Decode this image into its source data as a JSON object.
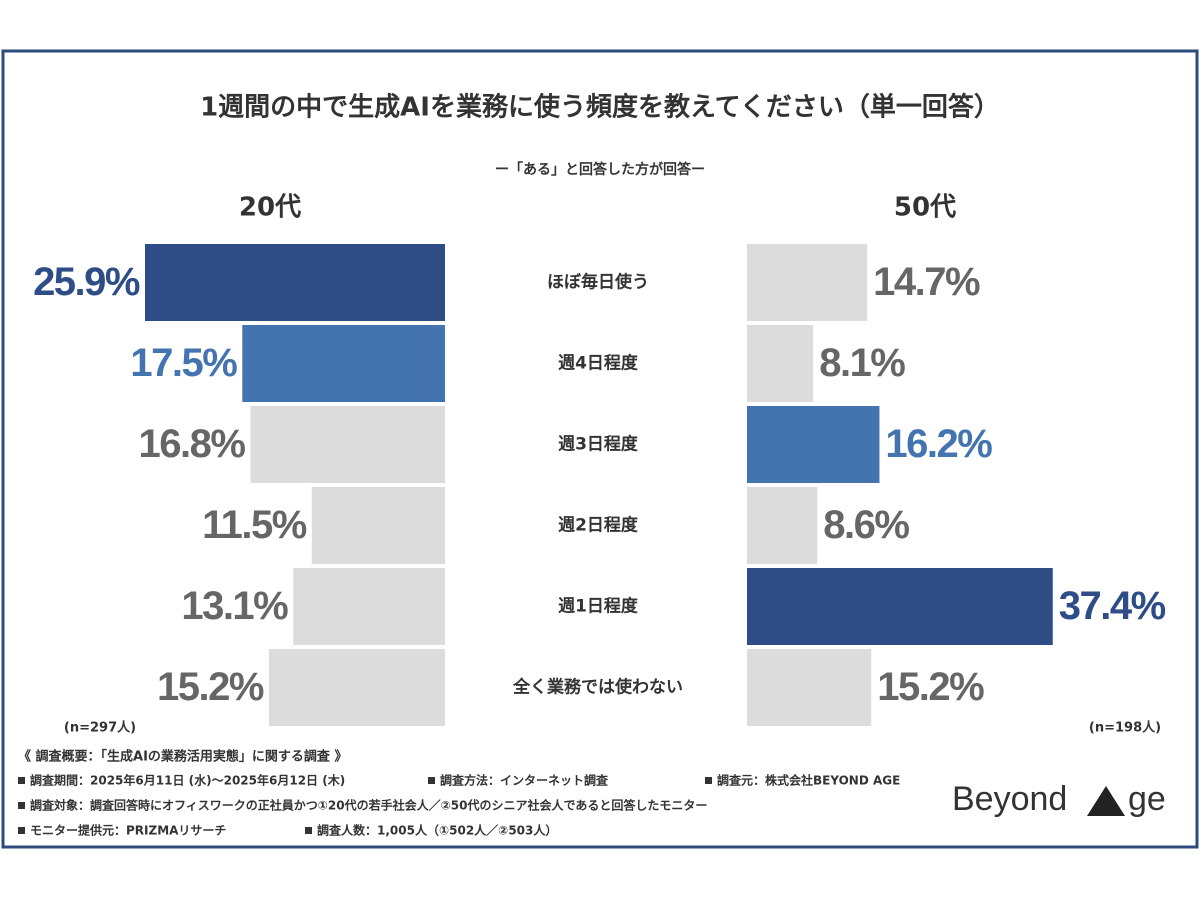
{
  "header": {
    "title": "1週間の中で生成AIを業務に使う頻度を教えてください（単一回答）",
    "subtitle": "ー「ある」と回答した方が回答ー"
  },
  "chart_data": {
    "type": "butterfly-bar",
    "categories": [
      "ほぼ毎日使う",
      "週4日程度",
      "週3日程度",
      "週2日程度",
      "週1日程度",
      "全く業務では使わない"
    ],
    "series": [
      {
        "name": "20代",
        "note": "(n=297人)",
        "xlim": [
          0,
          30
        ],
        "values": [
          25.9,
          17.5,
          16.8,
          11.5,
          13.1,
          15.2
        ],
        "value_labels": [
          "25.9%",
          "17.5%",
          "16.8%",
          "11.5%",
          "13.1%",
          "15.2%"
        ],
        "colors": [
          "#2e4d87",
          "#4474b0",
          "#dcdcdc",
          "#dcdcdc",
          "#dcdcdc",
          "#dcdcdc"
        ],
        "label_colors": [
          "#2e4d87",
          "#4474b0",
          "#666666",
          "#666666",
          "#666666",
          "#666666"
        ]
      },
      {
        "name": "50代",
        "note": "(n=198人)",
        "xlim": [
          0,
          40
        ],
        "values": [
          14.7,
          8.1,
          16.2,
          8.6,
          37.4,
          15.2
        ],
        "value_labels": [
          "14.7%",
          "8.1%",
          "16.2%",
          "8.6%",
          "37.4%",
          "15.2%"
        ],
        "colors": [
          "#dcdcdc",
          "#dcdcdc",
          "#4474b0",
          "#dcdcdc",
          "#2e4d87",
          "#dcdcdc"
        ],
        "label_colors": [
          "#666666",
          "#666666",
          "#4474b0",
          "#666666",
          "#2e4d87",
          "#666666"
        ]
      }
    ]
  },
  "footer": {
    "heading": "《 調査概要：「生成AIの業務活用実態」に関する調査 》",
    "rows": [
      [
        "調査期間：2025年6月11日 (水)～2025年6月12日 (木)",
        "調査方法：インターネット調査",
        "調査元：株式会社BEYOND AGE"
      ],
      [
        "調査対象：調査回答時にオフィスワークの正社員かつ①20代の若手社会人／②50代のシニア社会人であると回答したモニター"
      ],
      [
        "モニター提供元：PRIZMAリサーチ",
        "調査人数：1,005人（①502人／②503人）"
      ]
    ],
    "logo": {
      "prefix": "Beyond",
      "suffix": "ge"
    }
  }
}
